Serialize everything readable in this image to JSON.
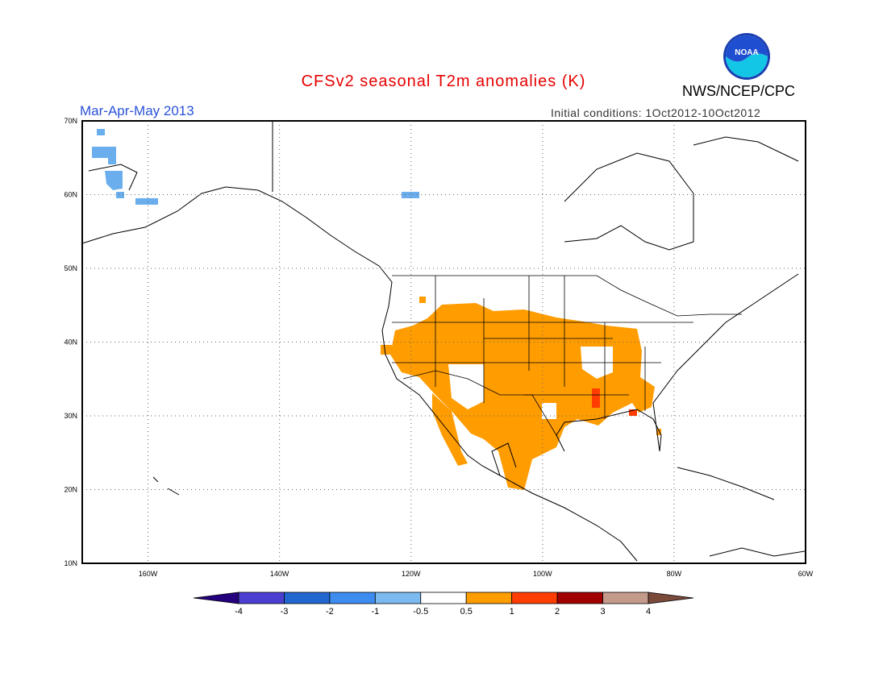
{
  "header": {
    "title": "CFSv2 seasonal T2m anomalies (K)",
    "org": "NWS/NCEP/CPC",
    "logo_text": "NOAA",
    "period": "Mar-Apr-May 2013",
    "initial_conditions": "Initial conditions: 1Oct2012-10Oct2012"
  },
  "map": {
    "lon_range": [
      -170,
      -60
    ],
    "lat_range": [
      10,
      70
    ],
    "lon_ticks": [
      "160W",
      "140W",
      "120W",
      "100W",
      "80W",
      "60W"
    ],
    "lat_ticks": [
      "70N",
      "60N",
      "50N",
      "40N",
      "30N",
      "20N",
      "10N"
    ],
    "grid": "dotted"
  },
  "colorbar": {
    "labels": [
      "-4",
      "-3",
      "-2",
      "-1",
      "-0.5",
      "0.5",
      "1",
      "2",
      "3",
      "4"
    ],
    "colors": [
      "#24007e",
      "#4b3fd1",
      "#2266cf",
      "#3d8df0",
      "#7bb9ef",
      "#ffffff",
      "#ff9c00",
      "#ff3d00",
      "#a00000",
      "#c49a8a",
      "#7a4a3a"
    ]
  },
  "anomaly_regions": {
    "warm_band_color": "#ff9c00",
    "strong_warm_color": "#ff3d00",
    "cool_color": "#6aaeee"
  }
}
